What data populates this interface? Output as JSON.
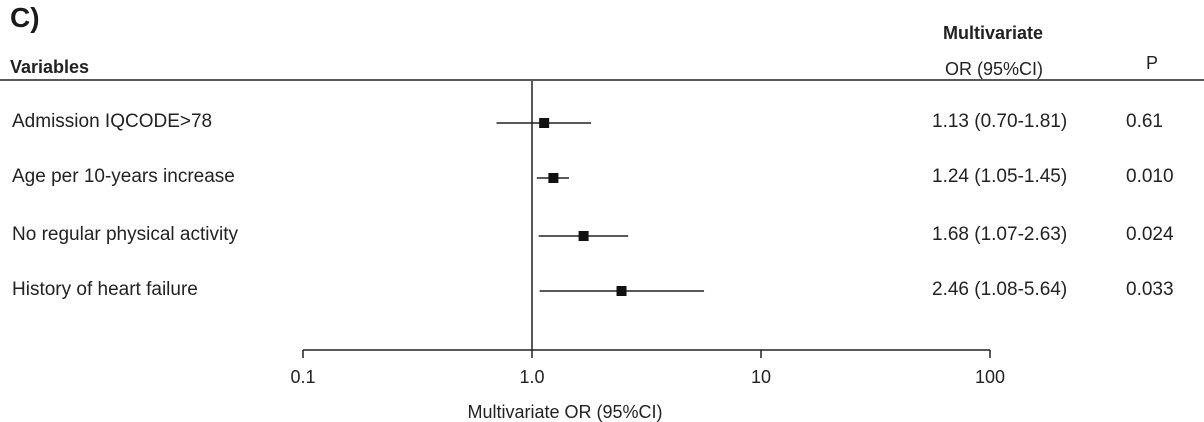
{
  "panel_label": "C)",
  "headers": {
    "variables": "Variables",
    "or_line1": "Multivariate",
    "or_line2": "OR (95%CI)",
    "p": "P"
  },
  "chart_data": {
    "type": "forest",
    "xscale": "log",
    "xlim": [
      0.1,
      100
    ],
    "reference_line": 1.0,
    "xticks": [
      0.1,
      1.0,
      10,
      100
    ],
    "xtick_labels": [
      "0.1",
      "1.0",
      "10",
      "100"
    ],
    "xlabel": "Multivariate OR (95%CI)",
    "rows": [
      {
        "label": "Admission IQCODE>78",
        "or": 1.13,
        "lo": 0.7,
        "hi": 1.81,
        "or_text": "1.13 (0.70-1.81)",
        "p": "0.61"
      },
      {
        "label": "Age per 10-years increase",
        "or": 1.24,
        "lo": 1.05,
        "hi": 1.45,
        "or_text": "1.24 (1.05-1.45)",
        "p": "0.010"
      },
      {
        "label": "No regular physical activity",
        "or": 1.68,
        "lo": 1.07,
        "hi": 2.63,
        "or_text": "1.68 (1.07-2.63)",
        "p": "0.024"
      },
      {
        "label": "History of heart failure",
        "or": 2.46,
        "lo": 1.08,
        "hi": 5.64,
        "or_text": "2.46 (1.08-5.64)",
        "p": "0.033"
      }
    ]
  }
}
